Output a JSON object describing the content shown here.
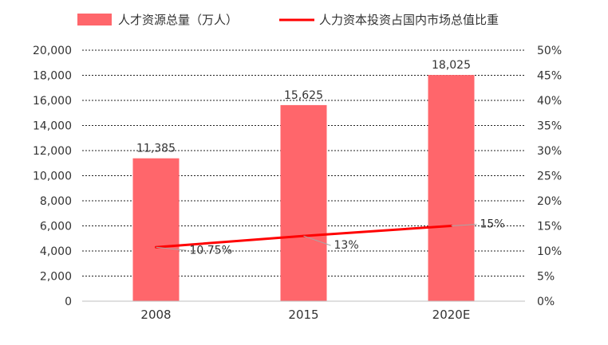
{
  "chart_data": {
    "type": "bar",
    "categories": [
      "2008",
      "2015",
      "2020E"
    ],
    "series": [
      {
        "name": "人才资源总量（万人）",
        "type": "bar",
        "axis": "left",
        "color": "#ff666b",
        "values": [
          11385,
          15625,
          18025
        ],
        "labels": [
          "11,385",
          "15,625",
          "18,025"
        ]
      },
      {
        "name": "人力资本投资占国内市场总值比重",
        "type": "line",
        "axis": "right",
        "color": "#ff0000",
        "values": [
          10.75,
          13,
          15
        ],
        "labels": [
          "10.75%",
          "13%",
          "15%"
        ]
      }
    ],
    "y_left": {
      "ylim": [
        0,
        20000
      ],
      "ticks": [
        "0",
        "2,000",
        "4,000",
        "6,000",
        "8,000",
        "10,000",
        "12,000",
        "14,000",
        "16,000",
        "18,000",
        "20,000"
      ]
    },
    "y_right": {
      "ylim": [
        0,
        50
      ],
      "ticks": [
        "0%",
        "5%",
        "10%",
        "15%",
        "20%",
        "25%",
        "30%",
        "35%",
        "40%",
        "45%",
        "50%"
      ]
    },
    "grid": true,
    "grid_style": "dashed",
    "legend_position": "top"
  }
}
